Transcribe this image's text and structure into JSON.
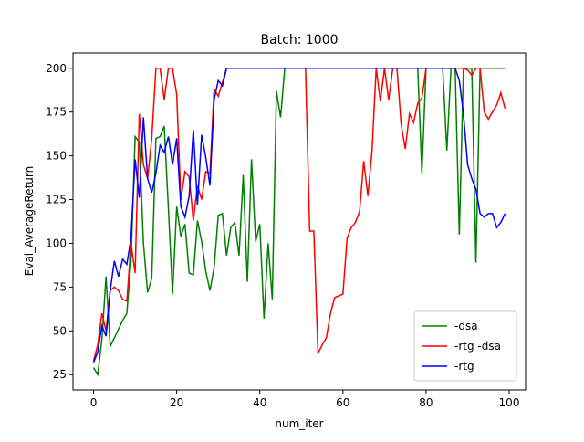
{
  "chart_data": {
    "type": "line",
    "title": "Batch: 1000",
    "x_label": "num_iter",
    "y_label": "Eval_AverageReturn",
    "x": [
      0,
      1,
      2,
      3,
      4,
      5,
      6,
      7,
      8,
      9,
      10,
      11,
      12,
      13,
      14,
      15,
      16,
      17,
      18,
      19,
      20,
      21,
      22,
      23,
      24,
      25,
      26,
      27,
      28,
      29,
      30,
      31,
      32,
      33,
      34,
      35,
      36,
      37,
      38,
      39,
      40,
      41,
      42,
      43,
      44,
      45,
      46,
      47,
      48,
      49,
      50,
      51,
      52,
      53,
      54,
      55,
      56,
      57,
      58,
      59,
      60,
      61,
      62,
      63,
      64,
      65,
      66,
      67,
      68,
      69,
      70,
      71,
      72,
      73,
      74,
      75,
      76,
      77,
      78,
      79,
      80,
      81,
      82,
      83,
      84,
      85,
      86,
      87,
      88,
      89,
      90,
      91,
      92,
      93,
      94,
      95,
      96,
      97,
      98,
      99
    ],
    "series": [
      {
        "name": "-dsa",
        "color": "#008000",
        "values": [
          29,
          25,
          45,
          81,
          41,
          46,
          51,
          56,
          60,
          90,
          161,
          158,
          100,
          72,
          80,
          160,
          161,
          167,
          120,
          71,
          121,
          104,
          111,
          83,
          82,
          113,
          101,
          84,
          73,
          86,
          116,
          117,
          93,
          109,
          112,
          93,
          139,
          78,
          148,
          101,
          111,
          57,
          100,
          68,
          187,
          172,
          200,
          200,
          200,
          200,
          200,
          200,
          200,
          200,
          200,
          200,
          200,
          200,
          200,
          200,
          200,
          200,
          200,
          200,
          200,
          200,
          200,
          200,
          200,
          200,
          200,
          200,
          200,
          200,
          200,
          200,
          200,
          200,
          200,
          140,
          200,
          200,
          200,
          200,
          200,
          153,
          200,
          200,
          105,
          200,
          200,
          200,
          89,
          200,
          200,
          200,
          200,
          200,
          200,
          200
        ]
      },
      {
        "name": "-rtg -dsa",
        "color": "#ff0000",
        "values": [
          33,
          42,
          60,
          50,
          73,
          75,
          73,
          68,
          67,
          100,
          83,
          174,
          145,
          137,
          160,
          200,
          200,
          182,
          200,
          200,
          185,
          125,
          141,
          138,
          113,
          133,
          125,
          141,
          140,
          188,
          184,
          192,
          200,
          200,
          200,
          200,
          200,
          200,
          200,
          200,
          200,
          200,
          200,
          200,
          200,
          200,
          200,
          200,
          200,
          200,
          200,
          200,
          107,
          107,
          37,
          42,
          46,
          60,
          69,
          70,
          71,
          103,
          109,
          112,
          118,
          147,
          127,
          153,
          200,
          181,
          200,
          182,
          200,
          200,
          168,
          154,
          174,
          169,
          180,
          183,
          200,
          200,
          200,
          200,
          200,
          200,
          200,
          200,
          200,
          200,
          199,
          196,
          200,
          200,
          175,
          171,
          175,
          179,
          186,
          177
        ]
      },
      {
        "name": "-rtg",
        "color": "#0000ff",
        "values": [
          32,
          38,
          53,
          47,
          73,
          90,
          81,
          91,
          88,
          103,
          148,
          126,
          172,
          137,
          129,
          140,
          156,
          152,
          161,
          145,
          160,
          121,
          115,
          127,
          165,
          122,
          162,
          149,
          133,
          182,
          193,
          190,
          200,
          200,
          200,
          200,
          200,
          200,
          200,
          200,
          200,
          200,
          200,
          200,
          200,
          200,
          200,
          200,
          200,
          200,
          200,
          200,
          200,
          200,
          200,
          200,
          200,
          200,
          200,
          200,
          200,
          200,
          200,
          200,
          200,
          200,
          200,
          200,
          200,
          200,
          200,
          200,
          200,
          200,
          200,
          200,
          200,
          200,
          200,
          200,
          200,
          200,
          200,
          200,
          200,
          200,
          200,
          200,
          193,
          174,
          145,
          137,
          131,
          117,
          115,
          117,
          117,
          109,
          112,
          117
        ]
      }
    ],
    "xlim": [
      -4.95,
      103.95
    ],
    "ylim": [
      16.25,
      208.75
    ],
    "xticks": [
      0,
      20,
      40,
      60,
      80,
      100
    ],
    "yticks": [
      25,
      50,
      75,
      100,
      125,
      150,
      175,
      200
    ],
    "legend": "lower right"
  }
}
